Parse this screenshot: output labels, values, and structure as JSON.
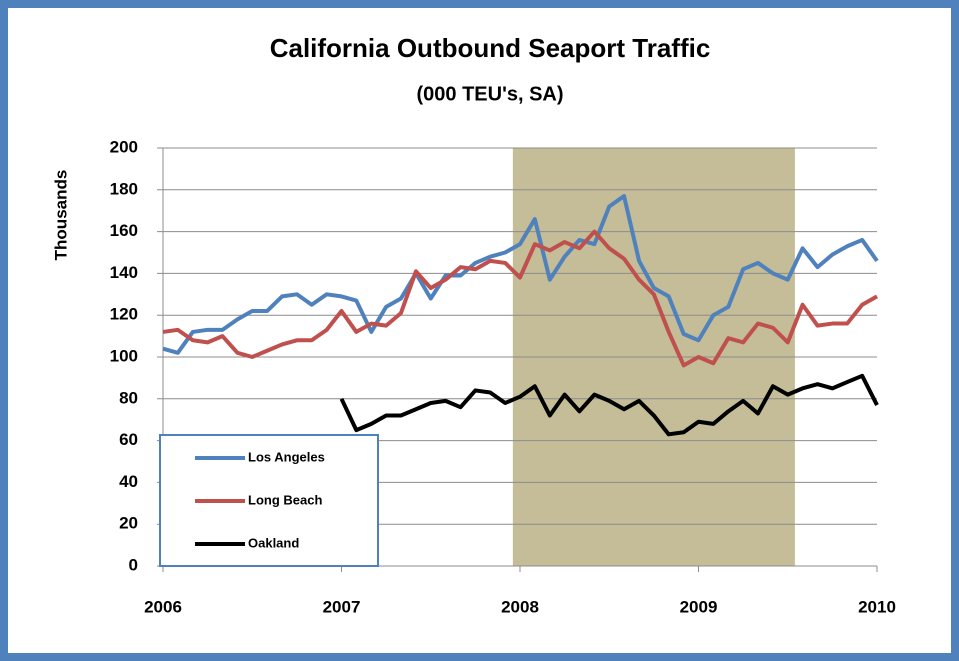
{
  "chart_data": {
    "type": "line",
    "title": "California Outbound Seaport Traffic",
    "subtitle": "(000 TEU's, SA)",
    "y_label": "Thousands",
    "x": [
      2006,
      2006.083,
      2006.167,
      2006.25,
      2006.333,
      2006.417,
      2006.5,
      2006.583,
      2006.667,
      2006.75,
      2006.833,
      2006.917,
      2007,
      2007.083,
      2007.167,
      2007.25,
      2007.333,
      2007.417,
      2007.5,
      2007.583,
      2007.667,
      2007.75,
      2007.833,
      2007.917,
      2008,
      2008.083,
      2008.167,
      2008.25,
      2008.333,
      2008.417,
      2008.5,
      2008.583,
      2008.667,
      2008.75,
      2008.833,
      2008.917,
      2009,
      2009.083,
      2009.167,
      2009.25,
      2009.333,
      2009.417,
      2009.5,
      2009.583,
      2009.667,
      2009.75,
      2009.833,
      2009.917,
      2010
    ],
    "series": [
      {
        "name": "Los Angeles",
        "color": "#4f81bd",
        "values": [
          104,
          102,
          112,
          113,
          113,
          118,
          122,
          122,
          129,
          130,
          125,
          130,
          129,
          127,
          112,
          124,
          128,
          140,
          128,
          139,
          139,
          145,
          148,
          150,
          154,
          166,
          137,
          148,
          156,
          154,
          172,
          177,
          146,
          133,
          129,
          111,
          108,
          120,
          124,
          142,
          145,
          140,
          137,
          152,
          143,
          149,
          153,
          156,
          146
        ]
      },
      {
        "name": "Long Beach",
        "color": "#c0504d",
        "values": [
          112,
          113,
          108,
          107,
          110,
          102,
          100,
          103,
          106,
          108,
          108,
          113,
          122,
          112,
          116,
          115,
          121,
          141,
          133,
          137,
          143,
          142,
          146,
          145,
          138,
          154,
          151,
          155,
          152,
          160,
          152,
          147,
          137,
          130,
          112,
          96,
          100,
          97,
          109,
          107,
          116,
          114,
          107,
          125,
          115,
          116,
          116,
          125,
          129
        ]
      },
      {
        "name": "Oakland",
        "color": "#000000",
        "values": [
          null,
          null,
          null,
          null,
          null,
          null,
          null,
          null,
          null,
          null,
          null,
          null,
          80,
          65,
          68,
          72,
          72,
          75,
          78,
          79,
          76,
          84,
          83,
          78,
          81,
          86,
          72,
          82,
          74,
          82,
          79,
          75,
          79,
          72,
          63,
          64,
          69,
          68,
          74,
          79,
          73,
          86,
          82,
          85,
          87,
          85,
          88,
          91,
          77
        ]
      }
    ],
    "shaded_x": [
      2007.96,
      2009.54
    ],
    "shade_color": "#c4bd97",
    "xlim": [
      2006,
      2010
    ],
    "xticks": [
      2006,
      2007,
      2008,
      2009,
      2010
    ],
    "ylim": [
      0,
      200
    ],
    "yticks": [
      0,
      20,
      40,
      60,
      80,
      100,
      120,
      140,
      160,
      180,
      200
    ],
    "grid": true,
    "legend": "lower left"
  }
}
